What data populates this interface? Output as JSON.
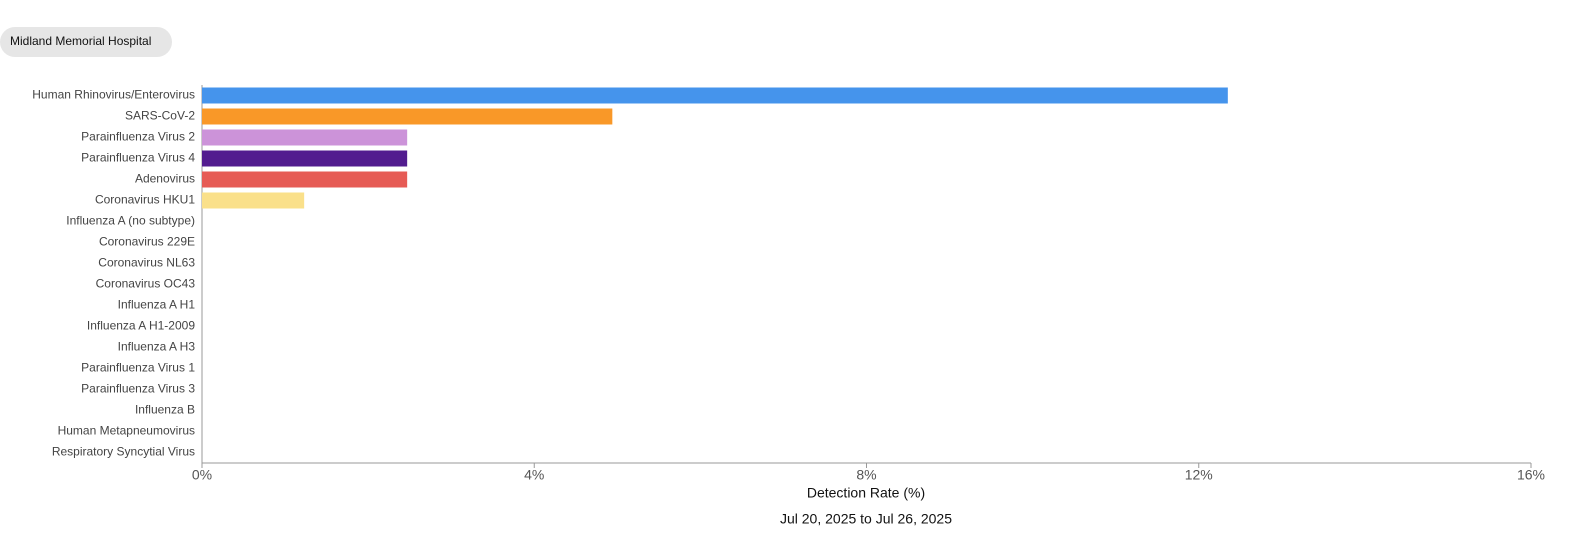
{
  "header": {
    "title": "Midland Memorial Hospital"
  },
  "chart_data": {
    "type": "hbar",
    "categories": [
      "Human Rhinovirus/Enterovirus",
      "SARS-CoV-2",
      "Parainfluenza Virus 2",
      "Parainfluenza Virus 4",
      "Adenovirus",
      "Coronavirus HKU1",
      "Influenza A (no subtype)",
      "Coronavirus 229E",
      "Coronavirus NL63",
      "Coronavirus OC43",
      "Influenza A H1",
      "Influenza A H1-2009",
      "Influenza A H3",
      "Parainfluenza Virus 1",
      "Parainfluenza Virus 3",
      "Influenza B",
      "Human Metapneumovirus",
      "Respiratory Syncytial Virus"
    ],
    "values": [
      12.35,
      4.94,
      2.47,
      2.47,
      2.47,
      1.23,
      0,
      0,
      0,
      0,
      0,
      0,
      0,
      0,
      0,
      0,
      0,
      0
    ],
    "colors": [
      "#4594ec",
      "#f99828",
      "#cc93d9",
      "#521c8f",
      "#e65b55",
      "#fae08a",
      null,
      null,
      null,
      null,
      null,
      null,
      null,
      null,
      null,
      null,
      null,
      null
    ],
    "xlim": [
      0,
      16
    ],
    "xticks": [
      {
        "value": 0,
        "label": "0%"
      },
      {
        "value": 4,
        "label": "4%"
      },
      {
        "value": 8,
        "label": "8%"
      },
      {
        "value": 12,
        "label": "12%"
      },
      {
        "value": 16,
        "label": "16%"
      }
    ],
    "xlabel": "Detection Rate (%)",
    "subtitle": "Jul 20, 2025 to Jul 26, 2025"
  }
}
